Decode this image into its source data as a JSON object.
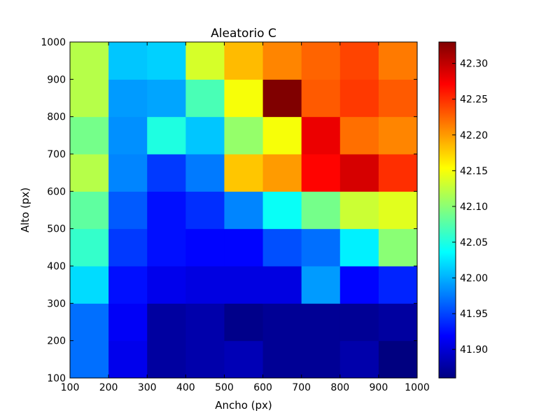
{
  "chart_data": {
    "type": "heatmap",
    "title": "Aleatorio C",
    "xlabel": "Ancho (px)",
    "ylabel": "Alto (px)",
    "xlim": [
      100,
      1000
    ],
    "ylim": [
      100,
      1000
    ],
    "x_edges": [
      100,
      200,
      300,
      400,
      500,
      600,
      700,
      800,
      900,
      1000
    ],
    "y_edges": [
      100,
      200,
      300,
      400,
      500,
      600,
      700,
      800,
      900,
      1000
    ],
    "x_ticks": [
      "100",
      "200",
      "300",
      "400",
      "500",
      "600",
      "700",
      "800",
      "900",
      "1000"
    ],
    "y_ticks": [
      "100",
      "200",
      "300",
      "400",
      "500",
      "600",
      "700",
      "800",
      "900",
      "1000"
    ],
    "colormap": "jet",
    "color_range": [
      41.86,
      42.33
    ],
    "colorbar_ticks": [
      "41.90",
      "41.95",
      "42.00",
      "42.05",
      "42.10",
      "42.15",
      "42.20",
      "42.25",
      "42.30"
    ],
    "values": [
      [
        41.97,
        41.91,
        41.875,
        41.88,
        41.885,
        41.87,
        41.87,
        41.88,
        41.86
      ],
      [
        41.97,
        41.915,
        41.875,
        41.88,
        41.865,
        41.87,
        41.87,
        41.87,
        41.875
      ],
      [
        42.02,
        41.925,
        41.91,
        41.905,
        41.905,
        41.905,
        41.99,
        41.92,
        41.935
      ],
      [
        42.06,
        41.945,
        41.925,
        41.92,
        41.92,
        41.955,
        41.97,
        42.03,
        42.1
      ],
      [
        42.08,
        41.96,
        41.925,
        41.94,
        41.98,
        42.04,
        42.09,
        42.13,
        42.14
      ],
      [
        42.12,
        41.98,
        41.945,
        41.975,
        42.18,
        42.2,
        42.27,
        42.29,
        42.25
      ],
      [
        42.09,
        41.985,
        42.05,
        42.01,
        42.105,
        42.15,
        42.28,
        42.22,
        42.21
      ],
      [
        42.12,
        41.99,
        41.995,
        42.07,
        42.15,
        42.33,
        42.23,
        42.245,
        42.23
      ],
      [
        42.12,
        42.01,
        42.015,
        42.135,
        42.185,
        42.21,
        42.225,
        42.24,
        42.215
      ]
    ]
  }
}
